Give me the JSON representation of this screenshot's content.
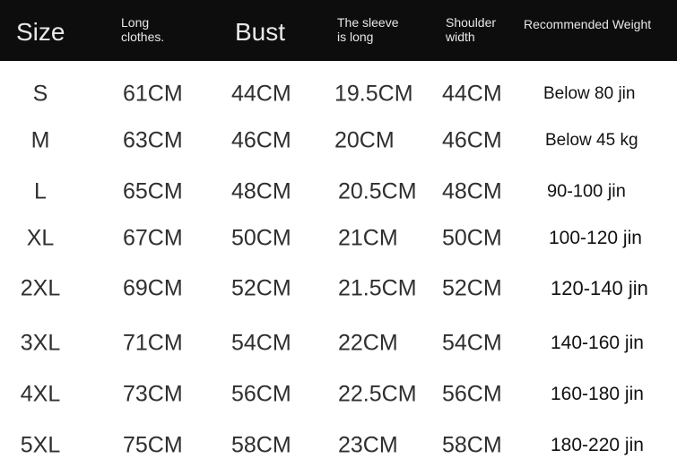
{
  "table": {
    "header": [
      "Size",
      "Long clothes.",
      "Bust",
      "The sleeve is long",
      "Shoulder width",
      "Recommended Weight"
    ],
    "rows": [
      [
        "S",
        "61CM",
        "44CM",
        "19.5CM",
        "44CM",
        "Below 80 jin"
      ],
      [
        "M",
        "63CM",
        "46CM",
        "20CM",
        "46CM",
        "Below 45 kg"
      ],
      [
        "L",
        "65CM",
        "48CM",
        "20.5CM",
        "48CM",
        "90-100 jin"
      ],
      [
        "XL",
        "67CM",
        "50CM",
        "21CM",
        "50CM",
        "100-120 jin"
      ],
      [
        "2XL",
        "69CM",
        "52CM",
        "21.5CM",
        "52CM",
        "120-140 jin"
      ],
      [
        "3XL",
        "71CM",
        "54CM",
        "22CM",
        "54CM",
        "140-160 jin"
      ],
      [
        "4XL",
        "73CM",
        "56CM",
        "22.5CM",
        "56CM",
        "160-180 jin"
      ],
      [
        "5XL",
        "75CM",
        "58CM",
        "23CM",
        "58CM",
        "180-220 jin"
      ]
    ]
  }
}
